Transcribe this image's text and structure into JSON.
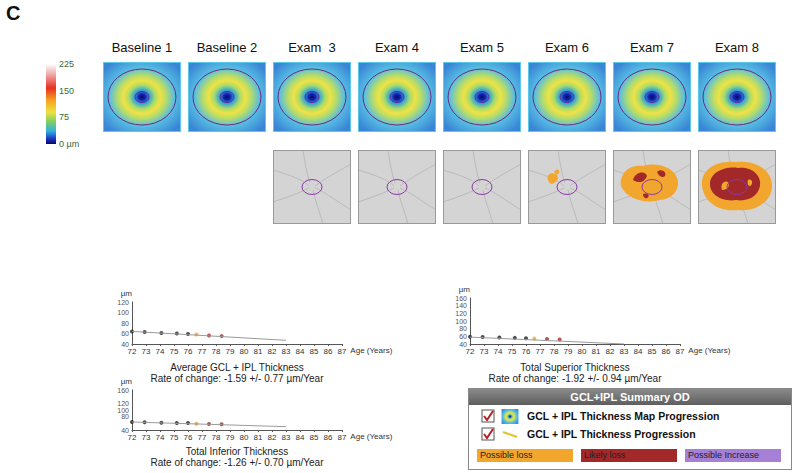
{
  "panel_label": "C",
  "columns": [
    "Baseline 1",
    "Baseline 2",
    "Exam  3",
    "Exam 4",
    "Exam 5",
    "Exam 6",
    "Exam 7",
    "Exam 8"
  ],
  "color_scale": {
    "range": [
      0,
      225
    ],
    "ticks": [
      225,
      150,
      75,
      {
        "value": 0,
        "label": "0 µm"
      }
    ]
  },
  "progression_maps": [
    null,
    null,
    0,
    0,
    0,
    1,
    2,
    3
  ],
  "chart_data": [
    {
      "type": "scatter",
      "title": "Average GCL + IPL Thickness",
      "subtitle": "Rate of change: -1.59 +/- 0.77 µm/Year",
      "xlabel": "Age (Years)",
      "ylabel": "µm",
      "xlim": [
        72,
        87
      ],
      "xticks": [
        72,
        73,
        74,
        75,
        76,
        77,
        78,
        79,
        80,
        81,
        82,
        83,
        84,
        85,
        86,
        87
      ],
      "ylim": [
        40,
        120
      ],
      "yticks": [
        40,
        60,
        80,
        100,
        120
      ],
      "grid": false,
      "series": [
        {
          "type": "scatter",
          "marker": "circle",
          "x": [
            72.0,
            72.9,
            74.1,
            75.2,
            76.0,
            76.6,
            77.5,
            78.4
          ],
          "values": [
            64,
            63,
            61,
            60,
            59,
            58,
            56,
            55
          ],
          "colors": [
            "#222222",
            "#222222",
            "#222222",
            "#222222",
            "#222222",
            "#e8a33a",
            "#a3282a",
            "#a3282a"
          ]
        },
        {
          "type": "line",
          "line_style": "solid",
          "x": [
            72,
            83
          ],
          "values": [
            64,
            47
          ],
          "color": "#9a9a9a"
        }
      ]
    },
    {
      "type": "scatter",
      "title": "Total Superior Thickness",
      "subtitle": "Rate of change: -1.92 +/- 0.94 µm/Year",
      "xlabel": "Age (Years)",
      "ylabel": "µm",
      "xlim": [
        72,
        87
      ],
      "xticks": [
        72,
        73,
        74,
        75,
        76,
        77,
        78,
        79,
        80,
        81,
        82,
        83,
        84,
        85,
        86,
        87
      ],
      "ylim": [
        40,
        160
      ],
      "yticks": [
        40,
        60,
        80,
        100,
        120,
        140,
        160
      ],
      "grid": false,
      "series": [
        {
          "type": "scatter",
          "marker": "circle",
          "x": [
            72.0,
            72.9,
            74.1,
            75.2,
            76.0,
            76.6,
            77.5,
            78.4
          ],
          "values": [
            59,
            58,
            57,
            56,
            55,
            54,
            53,
            52
          ],
          "colors": [
            "#222222",
            "#222222",
            "#222222",
            "#222222",
            "#222222",
            "#e8a33a",
            "#a3282a",
            "#a3282a"
          ]
        },
        {
          "type": "line",
          "line_style": "solid",
          "x": [
            72,
            83
          ],
          "values": [
            58,
            40
          ],
          "color": "#9a9a9a"
        }
      ]
    },
    {
      "type": "scatter",
      "title": "Total Inferior Thickness",
      "subtitle": "Rate of change: -1.26 +/- 0.70 µm/Year",
      "xlabel": "Age (Years)",
      "ylabel": "µm",
      "xlim": [
        72,
        87
      ],
      "xticks": [
        72,
        73,
        74,
        75,
        76,
        77,
        78,
        79,
        80,
        81,
        82,
        83,
        84,
        85,
        86,
        87
      ],
      "ylim": [
        40,
        160
      ],
      "yticks": [
        40,
        60,
        80,
        100,
        120,
        140,
        160
      ],
      "grid": false,
      "series": [
        {
          "type": "scatter",
          "marker": "circle",
          "x": [
            72.0,
            72.9,
            74.1,
            75.2,
            76.0,
            76.6,
            77.5,
            78.4
          ],
          "values": [
            64,
            63,
            62,
            61,
            61,
            59,
            58,
            57
          ],
          "colors": [
            "#222222",
            "#222222",
            "#222222",
            "#222222",
            "#222222",
            "#e8a33a",
            "#a3282a",
            "#a3282a"
          ]
        },
        {
          "type": "line",
          "line_style": "solid",
          "x": [
            72,
            83
          ],
          "values": [
            64,
            50
          ],
          "color": "#9a9a9a"
        }
      ]
    }
  ],
  "summary": {
    "title": "GCL+IPL Summary OD",
    "rows": [
      {
        "label": "GCL + IPL Thickness Map Progression",
        "checked": true
      },
      {
        "label": "GCL + IPL Thickness Progression",
        "checked": true
      }
    ],
    "legend": [
      {
        "label": "Possible loss",
        "color": "#f2a62e"
      },
      {
        "label": "Likely loss",
        "color": "#a3282a"
      },
      {
        "label": "Possible Increase",
        "color": "#a67fd6"
      }
    ]
  }
}
